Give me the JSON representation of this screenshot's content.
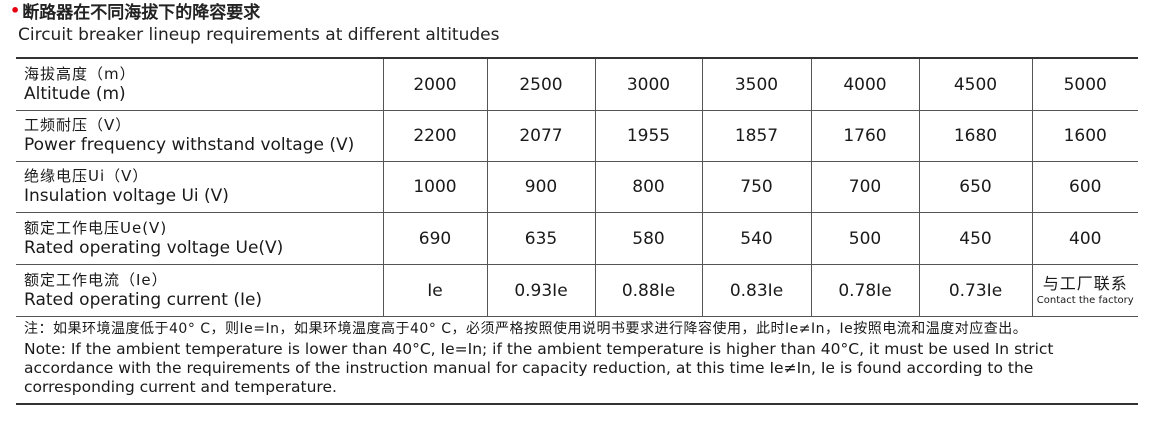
{
  "title": {
    "cn": "断路器在不同海拔下的降容要求",
    "en": "Circuit breaker lineup requirements at different altitudes"
  },
  "table": {
    "altitudes": [
      "2000",
      "2500",
      "3000",
      "3500",
      "4000",
      "4500",
      "5000"
    ],
    "rows": [
      {
        "cn": "海拔高度（m）",
        "en": "Altitude (m)",
        "values": [
          "2000",
          "2500",
          "3000",
          "3500",
          "4000",
          "4500",
          "5000"
        ]
      },
      {
        "cn": "工频耐压（V）",
        "en": "Power frequency withstand voltage (V)",
        "values": [
          "2200",
          "2077",
          "1955",
          "1857",
          "1760",
          "1680",
          "1600"
        ]
      },
      {
        "cn": "绝缘电压Ui（V）",
        "en": "Insulation voltage Ui (V)",
        "values": [
          "1000",
          "900",
          "800",
          "750",
          "700",
          "650",
          "600"
        ]
      },
      {
        "cn": "额定工作电压Ue(V)",
        "en": "Rated operating voltage Ue(V)",
        "values": [
          "690",
          "635",
          "580",
          "540",
          "500",
          "450",
          "400"
        ]
      },
      {
        "cn": "额定工作电流（Ie）",
        "en": "Rated operating current (Ie)",
        "values": [
          "Ie",
          "0.93Ie",
          "0.88Ie",
          "0.83Ie",
          "0.78Ie",
          "0.73Ie"
        ],
        "last_cn": "与工厂联系",
        "last_en": "Contact the factory"
      }
    ]
  },
  "note": {
    "cn": "注：如果环境温度低于40° C，则Ie=In，如果环境温度高于40° C，必须严格按照使用说明书要求进行降容使用，此时Ie≠In，Ie按照电流和温度对应查出。",
    "en": "Note: If the ambient temperature is lower than 40°C, Ie=In; if the ambient temperature is higher than 40°C, it must be used In strict accordance with the requirements of the instruction manual for capacity reduction, at this time Ie≠In, Ie is found according to the corresponding current and temperature."
  },
  "colors": {
    "bullet": "#e60012",
    "text": "#1a1a1a",
    "rule": "#333333"
  }
}
